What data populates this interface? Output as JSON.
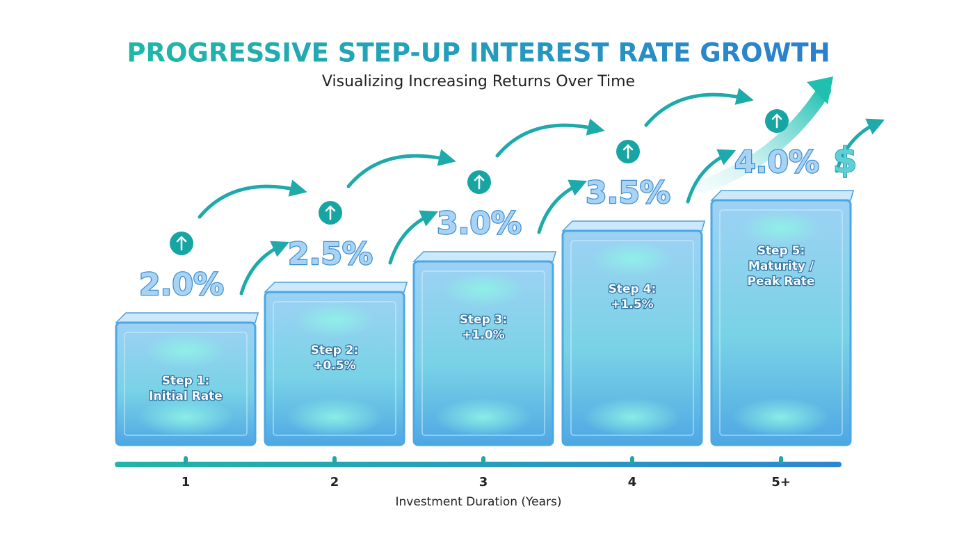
{
  "chart_data": {
    "type": "bar",
    "title": "PROGRESSIVE STEP-UP INTEREST RATE GROWTH",
    "subtitle": "Visualizing Increasing Returns Over Time",
    "x_label": "Investment Duration (Years)",
    "categories": [
      "1",
      "2",
      "3",
      "4",
      "5+"
    ],
    "values": [
      2.0,
      2.5,
      3.0,
      3.5,
      4.0
    ],
    "value_labels": [
      "2.0%",
      "2.5%",
      "3.0%",
      "3.5%",
      "4.0%"
    ],
    "step_labels": [
      [
        "Step 1:",
        "Initial Rate"
      ],
      [
        "Step 2:",
        "+0.5%"
      ],
      [
        "Step 3:",
        "+1.0%"
      ],
      [
        "Step 4:",
        "+1.5%"
      ],
      [
        "Step 5:",
        "Maturity /",
        "Peak Rate"
      ]
    ],
    "currency_symbol": "$",
    "color": "#4aa8e6"
  }
}
